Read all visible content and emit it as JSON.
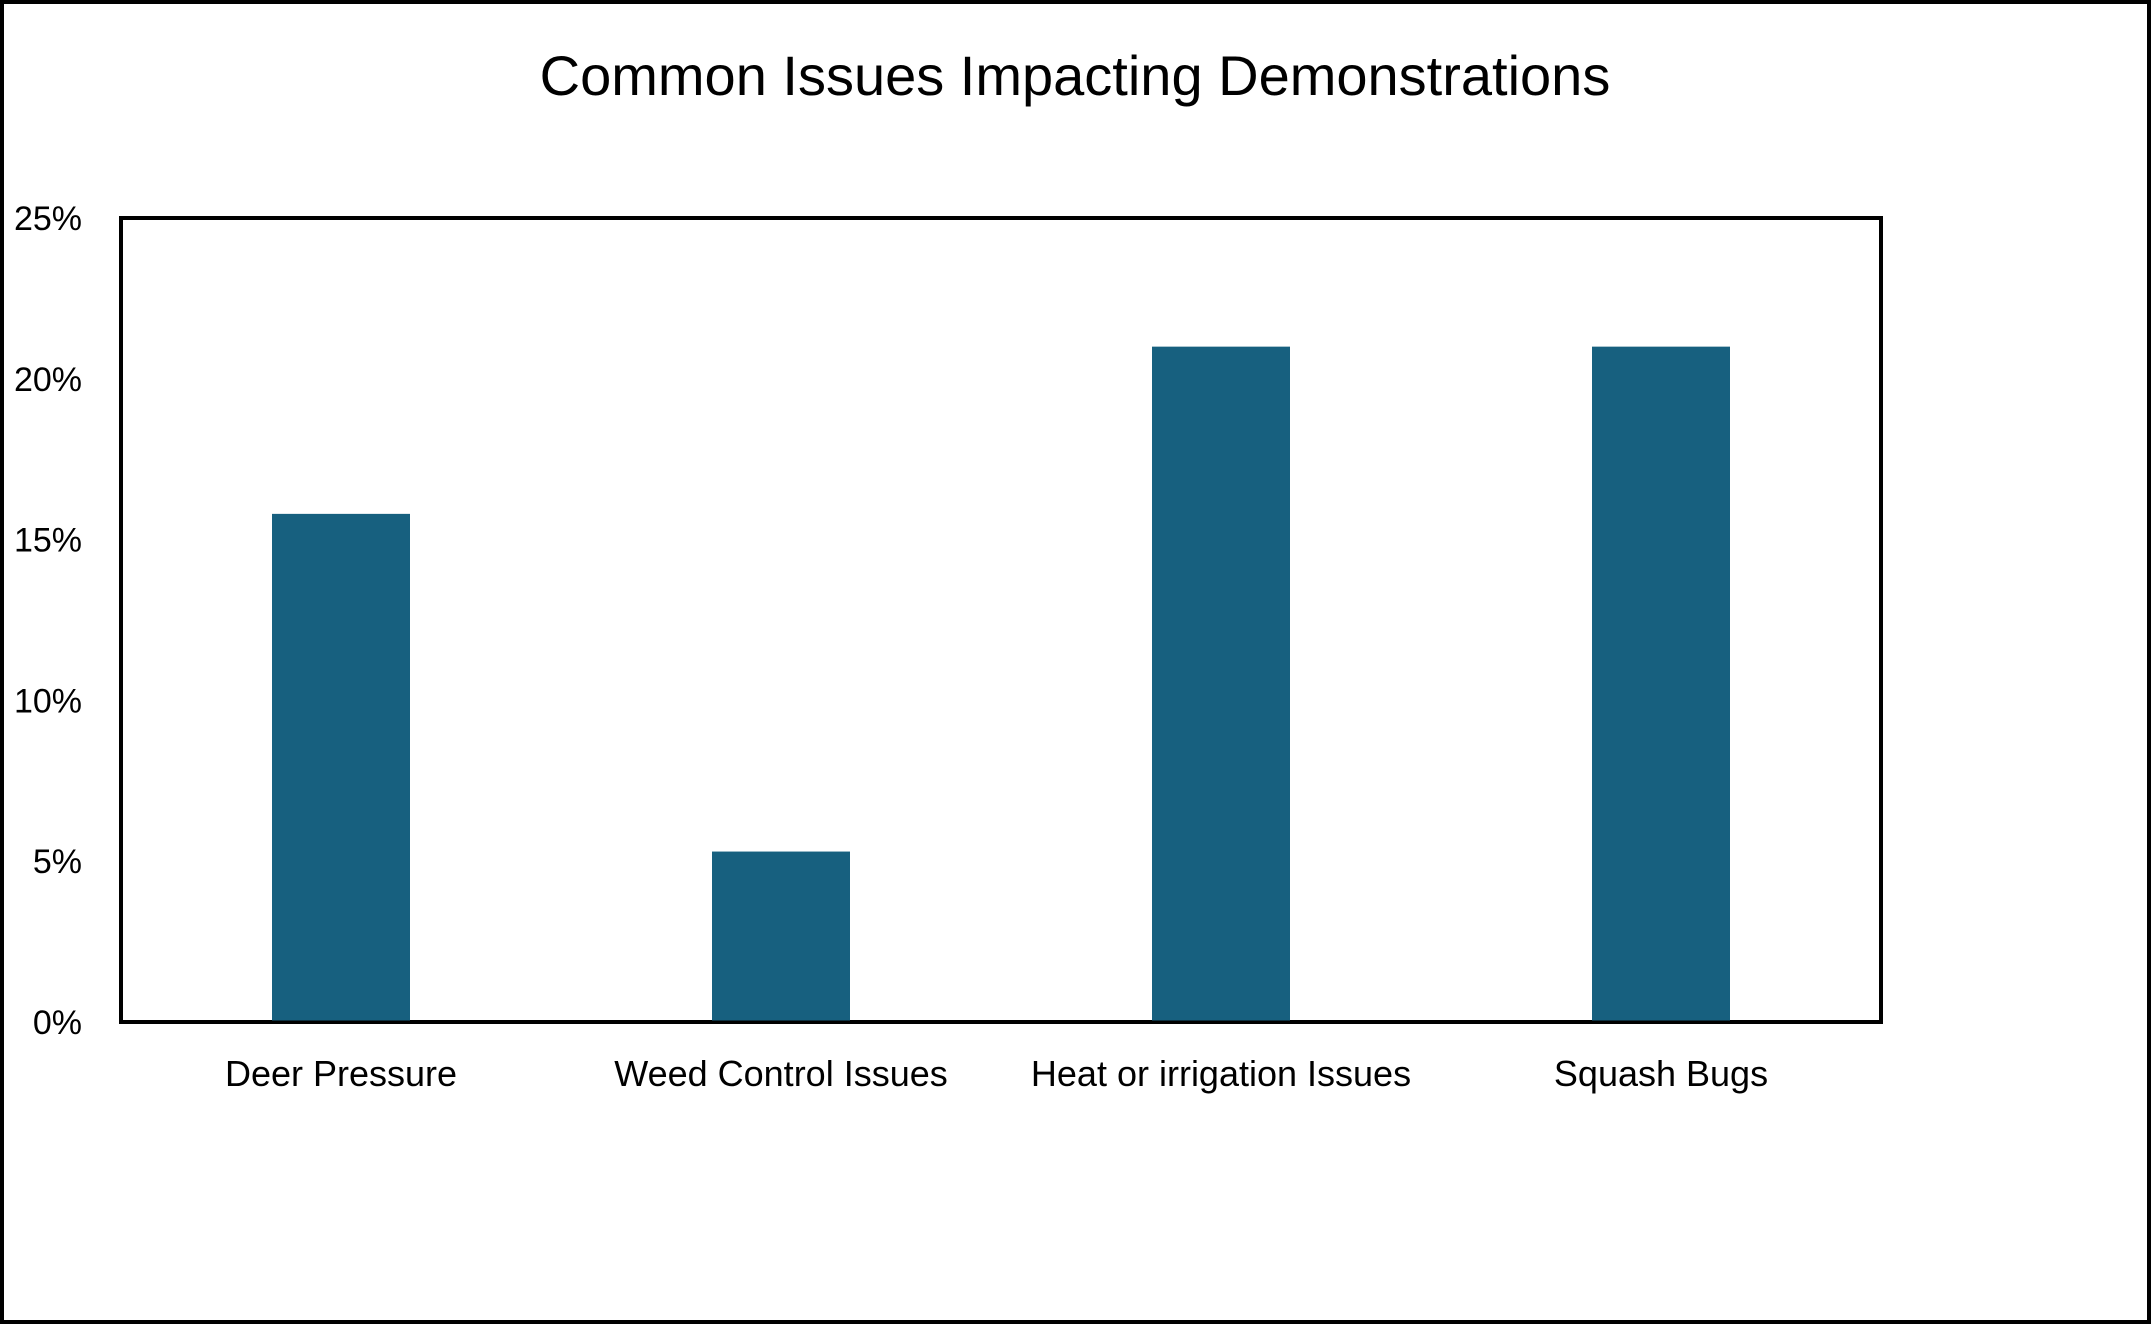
{
  "chart_data": {
    "type": "bar",
    "title": "Common Issues Impacting Demonstrations",
    "xlabel": "",
    "ylabel": "",
    "categories": [
      "Deer Pressure",
      "Weed Control Issues",
      "Heat or irrigation Issues",
      "Squash Bugs"
    ],
    "values": [
      15.8,
      5.3,
      21.0,
      21.0
    ],
    "ylim": [
      0,
      25
    ],
    "yticks": [
      0,
      5,
      10,
      15,
      20,
      25
    ],
    "ytick_labels": [
      "0%",
      "5%",
      "10%",
      "15%",
      "20%",
      "25%"
    ],
    "grid": false,
    "legend": "none",
    "bar_color": "#17607f",
    "frame_color": "#000000"
  }
}
